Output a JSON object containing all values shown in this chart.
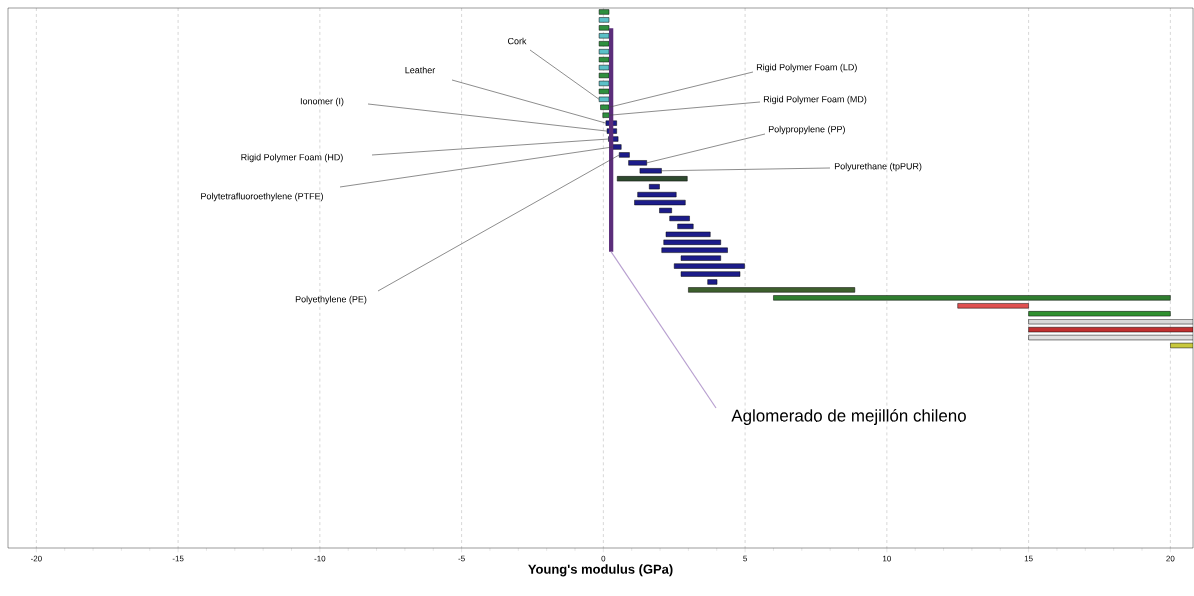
{
  "chart_data": {
    "type": "bar",
    "orientation": "horizontal",
    "xlabel": "Young's modulus (GPa)",
    "categories": [
      null,
      null,
      null,
      null,
      null,
      null,
      null,
      null,
      null,
      null,
      null,
      null,
      null,
      null,
      null,
      null,
      null,
      null,
      null,
      null,
      null,
      null,
      null,
      null,
      null,
      null,
      null,
      null,
      null,
      null,
      null,
      null,
      null,
      null,
      null,
      null,
      null,
      null,
      null,
      null,
      null,
      null,
      null,
      null,
      null,
      null,
      null,
      null,
      null,
      null,
      null,
      null,
      null,
      null,
      null,
      null,
      null,
      null,
      null,
      null,
      null,
      null,
      null,
      null,
      null,
      null,
      null,
      null
    ],
    "series": [
      {
        "base": [
          -0.15,
          -0.15,
          -0.15,
          -0.15,
          -0.15,
          -0.15,
          -0.15,
          -0.15,
          -0.15,
          -0.15,
          -0.15,
          -0.15,
          -0.1,
          -0.02,
          0.09,
          0.13,
          0.18,
          0.33,
          0.56,
          0.89,
          1.29,
          0.49,
          1.62,
          1.21,
          1.1,
          1.98,
          2.34,
          2.62,
          2.21,
          2.13,
          2.06,
          2.74,
          2.5,
          2.74,
          3.68,
          3.0,
          6.0,
          12.5,
          15.0,
          15.0,
          15.0,
          15.0,
          20.0,
          null,
          null,
          null,
          null,
          null,
          null,
          null,
          null,
          null,
          null,
          null,
          null,
          null,
          null,
          null,
          null,
          null,
          null,
          null,
          null,
          null,
          null,
          null,
          null,
          null
        ],
        "values": [
          0.35,
          0.35,
          0.35,
          0.35,
          0.35,
          0.35,
          0.35,
          0.35,
          0.35,
          0.35,
          0.35,
          0.35,
          0.3,
          0.23,
          0.38,
          0.34,
          0.34,
          0.3,
          0.36,
          0.64,
          0.76,
          2.47,
          0.36,
          1.36,
          1.79,
          0.43,
          0.7,
          0.55,
          1.56,
          2.01,
          2.32,
          1.4,
          2.48,
          2.08,
          0.33,
          5.87,
          14.0,
          2.5,
          5.0,
          5.8,
          5.8,
          5.8,
          0.8,
          null,
          null,
          null,
          null,
          null,
          null,
          null,
          null,
          null,
          null,
          null,
          null,
          null,
          null,
          null,
          null,
          null,
          null,
          null,
          null,
          null,
          null,
          null,
          null,
          null
        ],
        "colors": [
          "#2f8f3f",
          "#5bc0c8",
          "#2f8f3f",
          "#5bc0c8",
          "#2f8f3f",
          "#5bc0c8",
          "#2f8f3f",
          "#5bc0c8",
          "#2f8f3f",
          "#5bc0c8",
          "#2f8f3f",
          "#5bc0c8",
          "#2f8f3f",
          "#2f8f3f",
          "#1c1c8a",
          "#1c1c8a",
          "#1c1c8a",
          "#1c1c8a",
          "#1c1c8a",
          "#1c1c8a",
          "#1c1c8a",
          "#2e4a2e",
          "#1c1c8a",
          "#1c1c8a",
          "#1c1c8a",
          "#1c1c8a",
          "#1c1c8a",
          "#1c1c8a",
          "#1c1c8a",
          "#1c1c8a",
          "#1c1c8a",
          "#1c1c8a",
          "#1c1c8a",
          "#1c1c8a",
          "#1c1c8a",
          "#3d5f2d",
          "#2f7d2f",
          "#e05050",
          "#2f8f2f",
          "#d8d8d8",
          "#c03030",
          "#e0e0e0",
          "#c8c83c",
          null,
          null,
          null,
          null,
          null,
          null,
          null,
          null,
          null,
          null,
          null,
          null,
          null,
          null,
          null,
          null,
          null,
          null,
          null,
          null,
          null,
          null,
          null,
          null,
          null
        ]
      }
    ],
    "xlim": [
      -21,
      20.8
    ],
    "xticks": [
      -20,
      -15,
      -10,
      -5,
      0,
      5,
      10,
      15,
      20
    ],
    "grid": "x",
    "bands": [
      {
        "axis": "x",
        "from": 0.2,
        "to": 0.35,
        "label": "Aglomerado de mejillón chileno",
        "color": "#5b2d7a"
      }
    ],
    "annotations": [
      "Cork",
      "Leather",
      "Ionomer (I)",
      "Rigid Polymer Foam (HD)",
      "Polytetrafluoroethylene (PTFE)",
      "Polyethylene (PE)",
      "Rigid Polymer Foam (LD)",
      "Rigid Polymer Foam (MD)",
      "Polypropylene (PP)",
      "Polyurethane (tpPUR)"
    ]
  }
}
